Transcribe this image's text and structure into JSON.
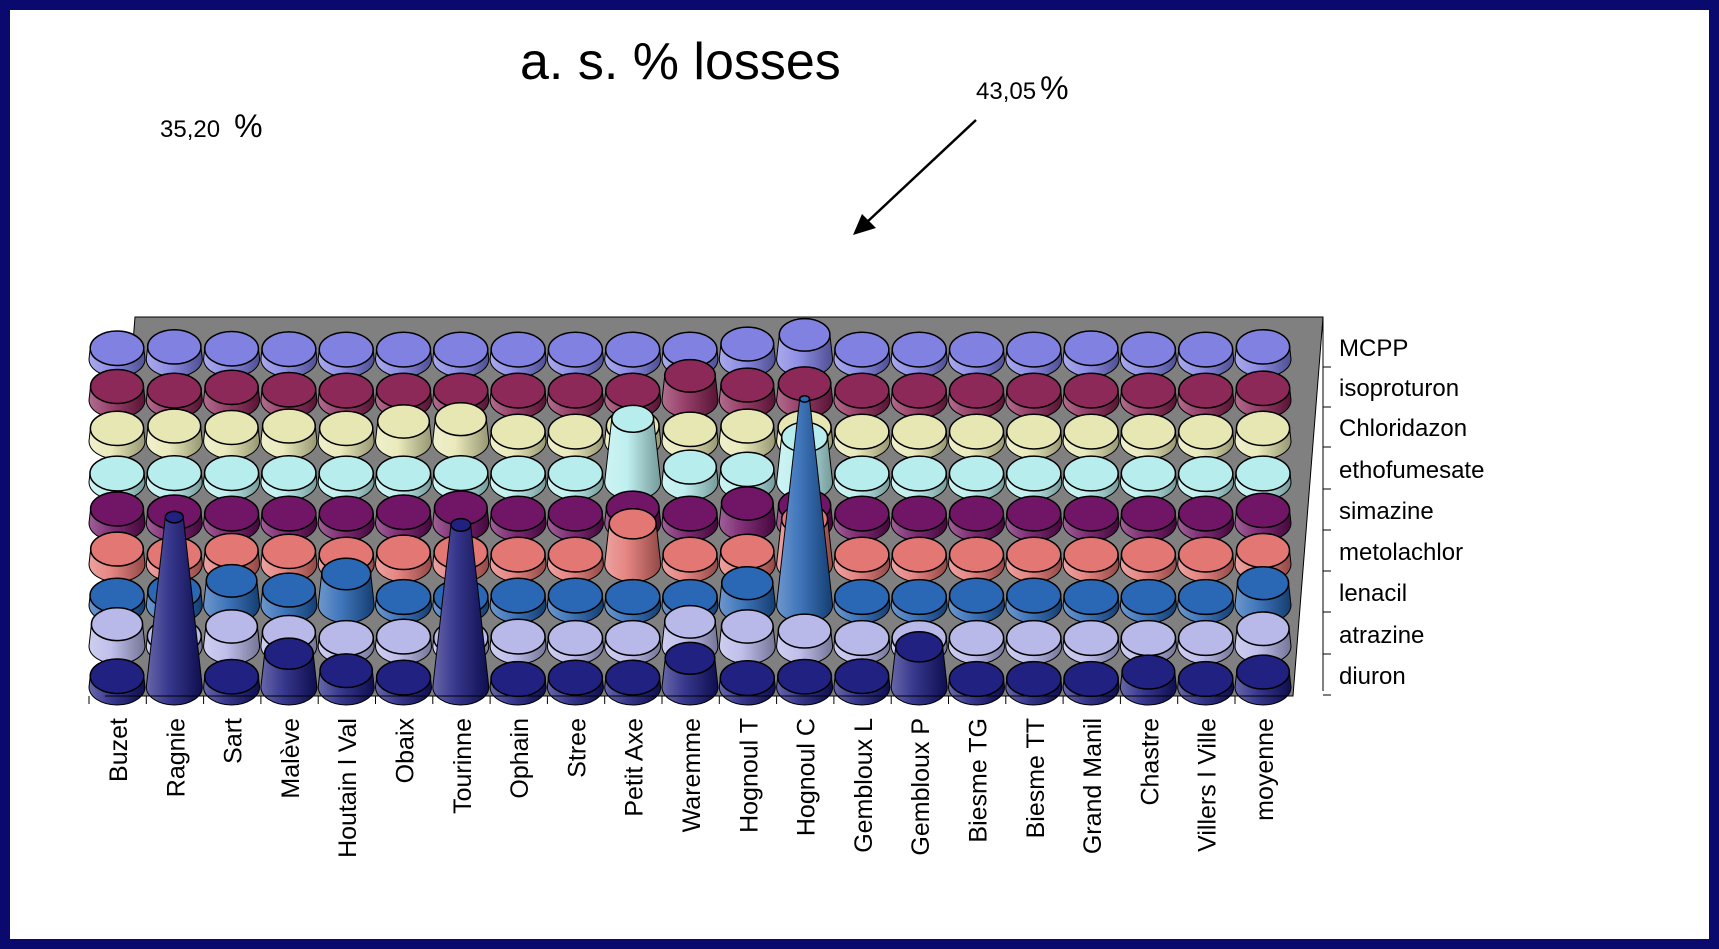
{
  "chart_data": {
    "type": "3d-cone",
    "title": "a. s. % losses",
    "annotations": [
      {
        "value": "35,20",
        "unit": "%",
        "target": "Ragnie"
      },
      {
        "value": "43,05",
        "unit": "%",
        "target": "Hognoul C"
      }
    ],
    "categories": [
      "Buzet",
      "Ragnie",
      "Sart",
      "Malève",
      "Houtain l Val",
      "Obaix",
      "Tourinne",
      "Ophain",
      "Stree",
      "Petit Axe",
      "Waremme",
      "Hognoul T",
      "Hognoul C",
      "Gembloux L",
      "Gembloux P",
      "Biesme TG",
      "Biesme TT",
      "Grand Manil",
      "Chastre",
      "Villers l Ville",
      "moyenne"
    ],
    "series": [
      {
        "name": "MCPP",
        "values": [
          0.6,
          35.2,
          0.5,
          5.5,
          1.8,
          0.3,
          33.5,
          0,
          0.3,
          0.3,
          4.5,
          0.2,
          0.5,
          0.6,
          7,
          0,
          0,
          0,
          1.5,
          0,
          1.5
        ]
      },
      {
        "name": "isoproturon",
        "values": [
          3,
          0.4,
          2.5,
          1.2,
          0,
          0.3,
          0,
          0.3,
          0,
          0,
          3.5,
          2.5,
          1.5,
          0,
          0,
          0,
          0,
          0,
          0,
          0,
          2
        ]
      },
      {
        "name": "Chloridazon",
        "values": [
          0.3,
          1.2,
          3.5,
          1.5,
          5,
          0,
          0,
          0.3,
          0.3,
          0,
          0,
          3,
          43.05,
          0,
          0,
          0.3,
          0.3,
          0,
          0,
          0,
          3
        ]
      },
      {
        "name": "ethofumesate",
        "values": [
          1.5,
          0.3,
          1.2,
          1,
          0.3,
          0.8,
          0.8,
          0.3,
          0.3,
          7,
          0.3,
          1,
          8,
          0.3,
          0.3,
          0.3,
          0.3,
          0.3,
          0.3,
          0.3,
          1.2
        ]
      },
      {
        "name": "simazine",
        "values": [
          1.3,
          0.6,
          0.3,
          0.3,
          0.3,
          0.6,
          1.5,
          0.3,
          0.3,
          1.5,
          0.3,
          2.5,
          2,
          0.3,
          0.3,
          0.3,
          0.3,
          0.3,
          0.3,
          0.3,
          1
        ]
      },
      {
        "name": "metolachlor",
        "values": [
          0.1,
          0.2,
          0.2,
          0.2,
          0.1,
          0.1,
          0.2,
          0.1,
          0.1,
          12,
          1.5,
          1,
          8,
          0.1,
          0.1,
          0.1,
          0.1,
          0.1,
          0.1,
          0,
          0.1
        ]
      },
      {
        "name": "lenacil",
        "values": [
          1,
          1.5,
          1.2,
          1.5,
          1,
          2.5,
          3,
          0.3,
          0.3,
          1.5,
          0.8,
          1.5,
          1.2,
          0.3,
          0.3,
          0.3,
          0.3,
          0.3,
          0.3,
          0.3,
          1
        ]
      },
      {
        "name": "atrazine",
        "values": [
          1.2,
          0.3,
          1,
          0.5,
          0.3,
          0.3,
          0.3,
          0.3,
          0.3,
          0.3,
          3.5,
          1.5,
          1.8,
          0.3,
          0.3,
          0.3,
          0.3,
          0.3,
          0.3,
          0.3,
          0.8
        ]
      },
      {
        "name": "diuron",
        "values": [
          0.6,
          0.9,
          0.5,
          0.4,
          0.3,
          0.3,
          0.3,
          0.3,
          0.3,
          0.3,
          0.3,
          1.5,
          3.5,
          0.3,
          0.3,
          0.3,
          0.3,
          0.6,
          0.3,
          0.3,
          0.9
        ]
      }
    ],
    "colors": [
      "#15157a",
      "#b4b4e8",
      "#1f5fb0",
      "#e0706c",
      "#6a0a5e",
      "#b4ecec",
      "#e6e6b0",
      "#861e50",
      "#7a7ae0"
    ],
    "grid": false,
    "legend": "right"
  }
}
